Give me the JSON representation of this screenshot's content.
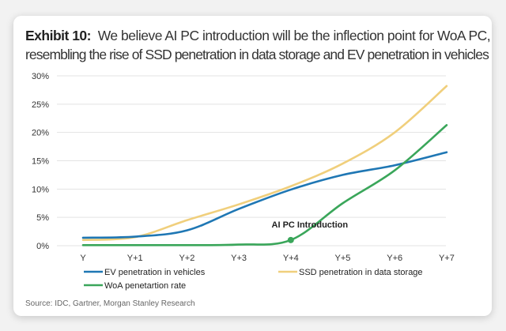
{
  "title": {
    "label": "Exhibit 10:",
    "line1": "We believe AI PC introduction will be the inflection point for WoA PC,",
    "line2": "resembling the rise of SSD penetration in data storage and EV penetration in vehicles"
  },
  "source": "Source: IDC, Gartner, Morgan Stanley Research",
  "chart_data": {
    "categories": [
      "Y",
      "Y+1",
      "Y+2",
      "Y+3",
      "Y+4",
      "Y+5",
      "Y+6",
      "Y+7"
    ],
    "ylim": [
      0,
      30
    ],
    "yticks": [
      "0%",
      "5%",
      "10%",
      "15%",
      "20%",
      "25%",
      "30%"
    ],
    "grid": true,
    "legend_position": "bottom",
    "series": [
      {
        "name": "EV penetration in vehicles",
        "color": "#1f77b4",
        "values": [
          1.4,
          1.6,
          2.7,
          6.5,
          9.9,
          12.5,
          14.2,
          16.5
        ]
      },
      {
        "name": "SSD penetration in data storage",
        "color": "#f0cf7c",
        "values": [
          1.0,
          1.5,
          4.5,
          7.3,
          10.5,
          14.5,
          20.0,
          28.2
        ]
      },
      {
        "name": "WoA penetartion rate",
        "color": "#3aa65a",
        "values": [
          0.1,
          0.1,
          0.1,
          0.2,
          1.0,
          7.5,
          13.3,
          21.3
        ]
      }
    ],
    "annotation": {
      "text": "AI PC Introduction",
      "category": "Y+4",
      "series": "WoA penetartion rate"
    }
  }
}
